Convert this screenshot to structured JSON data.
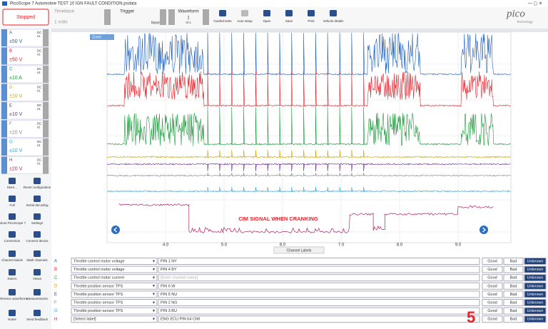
{
  "window_title": "PicoScope 7 Automotive TEST 10 IGN FAULT CONDITION.psdata",
  "toolbar": {
    "run_state": "Stopped",
    "timebase": {
      "label": "Timebase",
      "value": "1 s/div"
    },
    "trigger": {
      "label": "Trigger",
      "mode": "None"
    },
    "waveform": {
      "label": "Waveform",
      "value": "1",
      "of": "of 1"
    },
    "buttons": [
      "Guided tests",
      "Auto setup",
      "Open",
      "Save",
      "Print",
      "Vehicle details"
    ],
    "logo": "pico",
    "logo_sub": "Technology"
  },
  "channels": [
    {
      "letter": "A",
      "range": "±50 V",
      "coupling": "DC",
      "probe": "x1",
      "color": "#1f5fbf"
    },
    {
      "letter": "B",
      "range": "±50 V",
      "coupling": "DC",
      "probe": "x1",
      "color": "#e8202a"
    },
    {
      "letter": "C",
      "range": "±10 A",
      "coupling": "DC",
      "probe": "x1",
      "color": "#1a9a3a"
    },
    {
      "letter": "D",
      "range": "±10 V",
      "coupling": "DC",
      "probe": "x1",
      "color": "#c8a000"
    },
    {
      "letter": "E",
      "range": "±10 V",
      "coupling": "DC",
      "probe": "x1",
      "color": "#6a2a9a"
    },
    {
      "letter": "F",
      "range": "±10 V",
      "coupling": "DC",
      "probe": "x1",
      "color": "#888888"
    },
    {
      "letter": "G",
      "range": "±10 V",
      "coupling": "DC",
      "probe": "x1",
      "color": "#2aa0d8"
    },
    {
      "letter": "H",
      "range": "±20 V",
      "coupling": "DC",
      "probe": "x1",
      "color": "#b0206a"
    }
  ],
  "tools": [
    "More...",
    "Reset configuration",
    "Full",
    "Serial decoding",
    "About PicoScope 7",
    "Settings",
    "Connection",
    "Connect device"
  ],
  "tools2": [
    "Channel labels",
    "Math channels",
    "Rulers",
    "Views",
    "Reference waveforms",
    "Measurements",
    "Notes",
    "Send feedback"
  ],
  "scope": {
    "zoom": "Zoom",
    "time_labels": [
      "4.0",
      "5.0",
      "6.0",
      "7.0",
      "8.0",
      "9.0"
    ],
    "annotation": "CIM SIGNAL WHEN CRANKING",
    "tab": "Channel Labels"
  },
  "labels_table": {
    "rating_buttons": [
      "Good",
      "Bad",
      "Unknown"
    ],
    "rows": [
      {
        "channel": "A",
        "label": "Throttle control motor voltage",
        "note": "PIN  1 NY"
      },
      {
        "channel": "B",
        "label": "Throttle control motor voltage",
        "note": "PIN 4 BY"
      },
      {
        "channel": "C",
        "label": "Throttle control motor current",
        "note": "[Enter channel notes]"
      },
      {
        "channel": "D",
        "label": "Throttle position sensor TPS",
        "note": "PIN 6 W"
      },
      {
        "channel": "E",
        "label": "Throttle position sensor TPS",
        "note": "PIN 5 NU"
      },
      {
        "channel": "F",
        "label": "Throttle position sensor TPS",
        "note": "PIN 2  NG"
      },
      {
        "channel": "G",
        "label": "Throttle position sensor TPS",
        "note": "PIN 3 BU"
      },
      {
        "channel": "H",
        "label": "[Select label]",
        "note": "ENG ECU PIN 64 CIM"
      }
    ]
  },
  "step_number": "5"
}
